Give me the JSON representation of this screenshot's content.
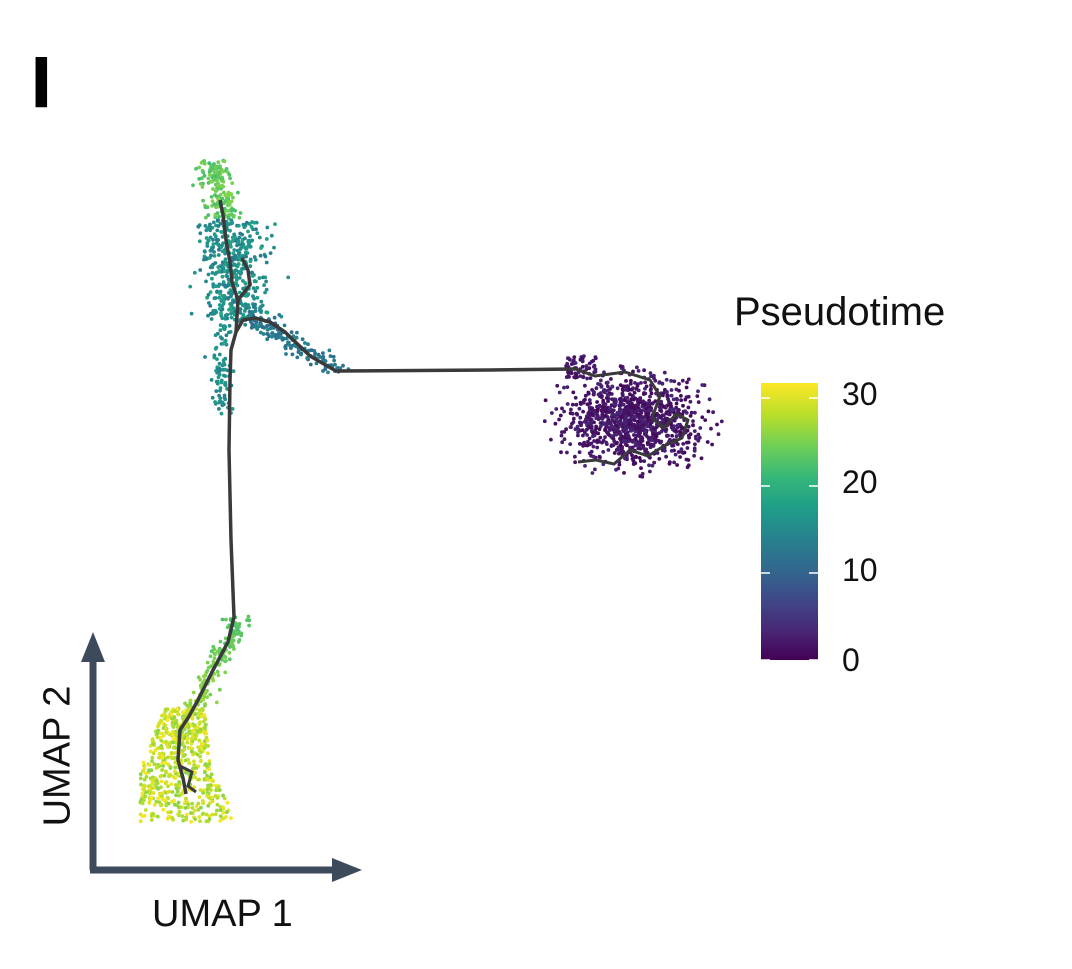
{
  "panel_label": "l",
  "chart_data": {
    "type": "scatter",
    "title": "",
    "xlabel": "UMAP 1",
    "ylabel": "UMAP 2",
    "axes_ticks_shown": false,
    "grid": false,
    "color_variable": "Pseudotime",
    "colormap": "viridis",
    "colorbar": {
      "title": "Pseudotime",
      "range": [
        0,
        32
      ],
      "ticks": [
        0,
        10,
        20,
        30
      ],
      "tick_labels": [
        "0",
        "10",
        "20",
        "30"
      ],
      "placement": "right"
    },
    "clusters": [
      {
        "region": "top-left branch (upper tip)",
        "pseudotime_approx": 22
      },
      {
        "region": "top-left branch (middle)",
        "pseudotime_approx": 15
      },
      {
        "region": "right cluster (root)",
        "pseudotime_approx": 1
      },
      {
        "region": "bottom-left branch",
        "pseudotime_approx": 28
      }
    ],
    "trajectory": "principal graph connecting right cluster to top-left junction and bottom-left branch"
  },
  "colors": {
    "axis_arrows": "#3d4a5c",
    "trajectory": "#3a3a3a",
    "viridis": [
      "#440154",
      "#482878",
      "#3e4989",
      "#31688e",
      "#26828e",
      "#1f9e89",
      "#35b779",
      "#6ece58",
      "#b5de2b",
      "#fde725"
    ]
  }
}
